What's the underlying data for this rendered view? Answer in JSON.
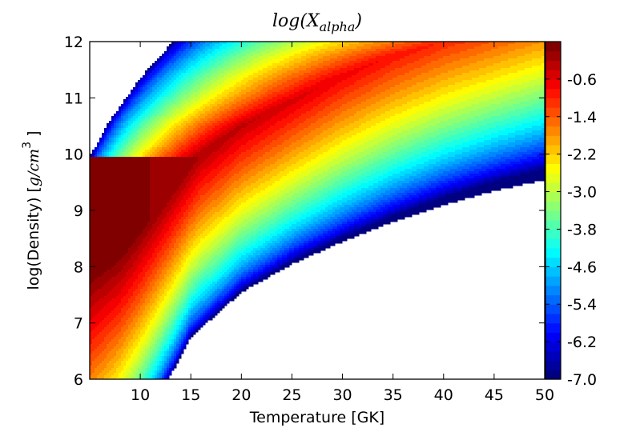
{
  "chart_data": {
    "type": "contour",
    "title": "log(X",
    "title_subscript": "alpha",
    "title_close": ")",
    "xlabel": "Temperature [GK]",
    "ylabel_main": "log(Density) [",
    "ylabel_unit": "g/cm",
    "ylabel_exp": "3",
    "ylabel_close": " ]",
    "xlim": [
      5,
      50
    ],
    "ylim": [
      6,
      12
    ],
    "x_ticks": [
      {
        "value": 10,
        "label": "10"
      },
      {
        "value": 15,
        "label": "15"
      },
      {
        "value": 20,
        "label": "20"
      },
      {
        "value": 25,
        "label": "25"
      },
      {
        "value": 30,
        "label": "30"
      },
      {
        "value": 35,
        "label": "35"
      },
      {
        "value": 40,
        "label": "40"
      },
      {
        "value": 45,
        "label": "45"
      },
      {
        "value": 50,
        "label": "50"
      }
    ],
    "y_ticks": [
      {
        "value": 6,
        "label": "6"
      },
      {
        "value": 7,
        "label": "7"
      },
      {
        "value": 8,
        "label": "8"
      },
      {
        "value": 9,
        "label": "9"
      },
      {
        "value": 10,
        "label": "10"
      },
      {
        "value": 11,
        "label": "11"
      },
      {
        "value": 12,
        "label": "12"
      }
    ],
    "colorbar": {
      "min": -7.0,
      "max": 0.2,
      "levels": 36,
      "colormap": "jet",
      "ticks": [
        {
          "value": -0.6,
          "label": "-0.6"
        },
        {
          "value": -1.4,
          "label": "-1.4"
        },
        {
          "value": -2.2,
          "label": "-2.2"
        },
        {
          "value": -3.0,
          "label": "-3.0"
        },
        {
          "value": -3.8,
          "label": "-3.8"
        },
        {
          "value": -4.6,
          "label": "-4.6"
        },
        {
          "value": -5.4,
          "label": "-5.4"
        },
        {
          "value": -6.2,
          "label": "-6.2"
        },
        {
          "value": -7.0,
          "label": "-7.0"
        }
      ]
    },
    "outer_boundary": [
      [
        5,
        9.95
      ],
      [
        7,
        10.6
      ],
      [
        10,
        11.35
      ],
      [
        13,
        11.95
      ],
      [
        13.2,
        12
      ]
    ],
    "inner_boundary": [
      [
        12.8,
        6
      ],
      [
        15,
        6.75
      ],
      [
        20,
        7.55
      ],
      [
        25,
        8.05
      ],
      [
        30,
        8.45
      ],
      [
        35,
        8.8
      ],
      [
        40,
        9.1
      ],
      [
        45,
        9.35
      ],
      [
        50,
        9.55
      ]
    ],
    "ridge": [
      [
        5,
        7.8
      ],
      [
        8,
        8.2
      ],
      [
        10,
        8.6
      ],
      [
        13,
        9.3
      ],
      [
        16,
        10.0
      ],
      [
        20,
        10.5
      ],
      [
        25,
        10.95
      ],
      [
        30,
        11.4
      ],
      [
        35,
        11.75
      ],
      [
        40,
        12.0
      ],
      [
        50,
        12.3
      ]
    ],
    "peak_log_x": 0.1,
    "edge_log_x": -7.0
  }
}
